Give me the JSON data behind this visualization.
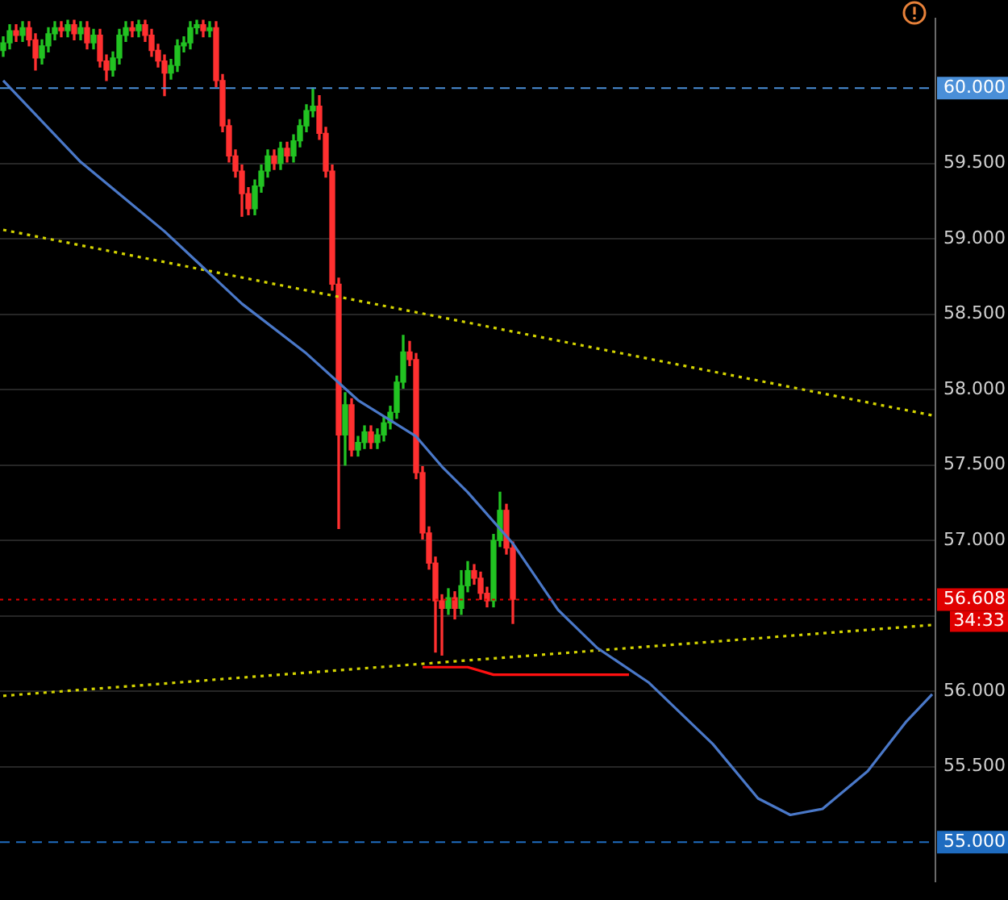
{
  "chart_data": {
    "type": "candlestick",
    "categories": [
      null,
      null,
      null,
      null,
      null,
      null,
      null,
      null,
      null,
      null,
      null,
      null,
      null,
      null,
      null,
      null,
      null,
      null,
      null,
      null,
      null,
      null,
      null,
      null,
      null,
      null,
      null,
      null,
      null,
      null,
      null,
      null,
      null,
      null,
      null,
      null,
      null,
      null,
      null,
      null,
      null,
      null,
      null,
      null,
      null,
      null,
      null,
      null,
      null,
      null,
      null,
      null,
      null,
      null,
      null,
      null,
      null,
      null,
      null,
      null,
      null,
      null,
      null,
      null,
      null,
      null,
      null,
      null,
      null,
      null,
      null,
      null,
      null,
      null,
      null,
      null,
      null,
      null,
      null,
      null,
      null,
      null,
      null,
      null,
      null,
      null,
      null,
      null,
      null,
      null,
      null,
      null,
      null,
      null,
      null,
      null,
      null,
      null,
      null,
      null,
      null,
      null,
      null,
      null,
      null,
      null,
      null,
      null,
      null,
      null,
      null,
      null,
      null,
      null,
      null,
      null,
      null,
      null,
      null,
      null,
      null,
      null,
      null,
      null,
      null,
      null,
      null,
      null,
      null,
      null,
      null,
      null,
      null,
      null,
      null,
      null,
      null,
      null,
      null,
      null,
      null,
      null,
      null,
      null,
      null
    ],
    "ohlc": [
      [
        60.25,
        60.34,
        60.21,
        60.3
      ],
      [
        60.3,
        60.42,
        60.26,
        60.38
      ],
      [
        60.38,
        60.42,
        60.31,
        60.35
      ],
      [
        60.35,
        60.44,
        60.31,
        60.4
      ],
      [
        60.4,
        60.44,
        60.28,
        60.32
      ],
      [
        60.32,
        60.36,
        60.12,
        60.2
      ],
      [
        60.2,
        60.32,
        60.16,
        60.28
      ],
      [
        60.28,
        60.4,
        60.24,
        60.36
      ],
      [
        60.36,
        60.44,
        60.32,
        60.4
      ],
      [
        60.4,
        60.44,
        60.34,
        60.38
      ],
      [
        60.38,
        60.45,
        60.34,
        60.42
      ],
      [
        60.42,
        60.45,
        60.32,
        60.36
      ],
      [
        60.36,
        60.44,
        60.32,
        60.4
      ],
      [
        60.4,
        60.44,
        60.26,
        60.3
      ],
      [
        60.3,
        60.39,
        60.26,
        60.35
      ],
      [
        60.35,
        60.39,
        60.14,
        60.18
      ],
      [
        60.18,
        60.22,
        60.05,
        60.12
      ],
      [
        60.12,
        60.24,
        60.08,
        60.2
      ],
      [
        60.2,
        60.39,
        60.16,
        60.35
      ],
      [
        60.35,
        60.44,
        60.31,
        60.4
      ],
      [
        60.4,
        60.44,
        60.34,
        60.38
      ],
      [
        60.38,
        60.45,
        60.34,
        60.42
      ],
      [
        60.42,
        60.45,
        60.31,
        60.35
      ],
      [
        60.35,
        60.39,
        60.21,
        60.25
      ],
      [
        60.25,
        60.29,
        60.14,
        60.18
      ],
      [
        60.18,
        60.22,
        59.95,
        60.1
      ],
      [
        60.1,
        60.19,
        60.06,
        60.15
      ],
      [
        60.15,
        60.32,
        60.11,
        60.28
      ],
      [
        60.28,
        60.34,
        60.24,
        60.3
      ],
      [
        60.3,
        60.44,
        60.26,
        60.4
      ],
      [
        60.4,
        60.45,
        60.36,
        60.42
      ],
      [
        60.42,
        60.45,
        60.34,
        60.38
      ],
      [
        60.38,
        60.44,
        60.34,
        60.4
      ],
      [
        60.4,
        60.44,
        60.01,
        60.05
      ],
      [
        60.05,
        60.09,
        59.71,
        59.75
      ],
      [
        59.75,
        59.79,
        59.51,
        59.55
      ],
      [
        59.55,
        59.59,
        59.41,
        59.45
      ],
      [
        59.45,
        59.49,
        59.15,
        59.3
      ],
      [
        59.3,
        59.34,
        59.16,
        59.2
      ],
      [
        59.2,
        59.39,
        59.16,
        59.35
      ],
      [
        59.35,
        59.49,
        59.31,
        59.45
      ],
      [
        59.45,
        59.59,
        59.41,
        59.55
      ],
      [
        59.55,
        59.59,
        59.46,
        59.5
      ],
      [
        59.5,
        59.64,
        59.46,
        59.6
      ],
      [
        59.6,
        59.64,
        59.51,
        59.55
      ],
      [
        59.55,
        59.69,
        59.51,
        59.65
      ],
      [
        59.65,
        59.79,
        59.61,
        59.75
      ],
      [
        59.75,
        59.89,
        59.71,
        59.85
      ],
      [
        59.85,
        60.0,
        59.81,
        59.88
      ],
      [
        59.88,
        59.95,
        59.66,
        59.7
      ],
      [
        59.7,
        59.74,
        59.41,
        59.45
      ],
      [
        59.45,
        59.49,
        58.66,
        58.7
      ],
      [
        58.7,
        58.74,
        57.08,
        57.7
      ],
      [
        57.7,
        57.98,
        57.5,
        57.9
      ],
      [
        57.9,
        57.94,
        57.56,
        57.6
      ],
      [
        57.6,
        57.69,
        57.56,
        57.65
      ],
      [
        57.65,
        57.76,
        57.61,
        57.72
      ],
      [
        57.72,
        57.76,
        57.61,
        57.65
      ],
      [
        57.65,
        57.74,
        57.61,
        57.7
      ],
      [
        57.7,
        57.82,
        57.66,
        57.78
      ],
      [
        57.78,
        57.89,
        57.74,
        57.85
      ],
      [
        57.85,
        58.09,
        57.81,
        58.05
      ],
      [
        58.05,
        58.36,
        58.01,
        58.25
      ],
      [
        58.25,
        58.32,
        58.16,
        58.2
      ],
      [
        58.2,
        58.24,
        57.41,
        57.45
      ],
      [
        57.45,
        57.49,
        57.01,
        57.05
      ],
      [
        57.05,
        57.09,
        56.81,
        56.85
      ],
      [
        56.85,
        56.89,
        56.26,
        56.6
      ],
      [
        56.6,
        56.64,
        56.24,
        56.55
      ],
      [
        56.55,
        56.68,
        56.51,
        56.62
      ],
      [
        56.62,
        56.66,
        56.48,
        56.55
      ],
      [
        56.55,
        56.8,
        56.51,
        56.7
      ],
      [
        56.7,
        56.86,
        56.66,
        56.8
      ],
      [
        56.8,
        56.84,
        56.71,
        56.75
      ],
      [
        56.75,
        56.79,
        56.61,
        56.65
      ],
      [
        56.65,
        56.69,
        56.56,
        56.6
      ],
      [
        56.6,
        57.04,
        56.56,
        57.0
      ],
      [
        57.0,
        57.32,
        56.96,
        57.2
      ],
      [
        57.2,
        57.24,
        56.91,
        56.95
      ],
      [
        56.95,
        56.99,
        56.45,
        56.61
      ],
      null,
      null,
      null,
      null,
      null,
      null,
      null,
      null,
      null,
      null,
      null,
      null,
      null,
      null,
      null,
      null,
      null,
      null,
      null,
      null,
      null,
      null,
      null,
      null,
      null,
      null,
      null,
      null,
      null,
      null,
      null,
      null,
      null,
      null,
      null,
      null,
      null,
      null,
      null,
      null,
      null,
      null,
      null,
      null,
      null,
      null,
      null,
      null,
      null,
      null,
      null,
      null,
      null,
      null,
      null,
      null,
      null,
      null,
      null,
      null,
      null,
      null,
      null,
      null,
      null
    ],
    "colors": [
      "#22c322",
      "#22c322",
      "#ff3030",
      "#22c322",
      "#ff3030",
      "#ff3030",
      "#22c322",
      "#22c322",
      "#22c322",
      "#ff3030",
      "#22c322",
      "#ff3030",
      "#22c322",
      "#ff3030",
      "#22c322",
      "#ff3030",
      "#ff3030",
      "#22c322",
      "#22c322",
      "#22c322",
      "#ff3030",
      "#22c322",
      "#ff3030",
      "#ff3030",
      "#ff3030",
      "#ff3030",
      "#22c322",
      "#22c322",
      "#22c322",
      "#22c322",
      "#22c322",
      "#ff3030",
      "#22c322",
      "#ff3030",
      "#ff3030",
      "#ff3030",
      "#ff3030",
      "#ff3030",
      "#ff3030",
      "#22c322",
      "#22c322",
      "#22c322",
      "#ff3030",
      "#22c322",
      "#ff3030",
      "#22c322",
      "#22c322",
      "#22c322",
      "#22c322",
      "#ff3030",
      "#ff3030",
      "#ff3030",
      "#ff3030",
      "#22c322",
      "#ff3030",
      "#22c322",
      "#22c322",
      "#ff3030",
      "#22c322",
      "#22c322",
      "#22c322",
      "#22c322",
      "#22c322",
      "#ff3030",
      "#ff3030",
      "#ff3030",
      "#ff3030",
      "#ff3030",
      "#ff3030",
      "#22c322",
      "#ff3030",
      "#22c322",
      "#22c322",
      "#ff3030",
      "#ff3030",
      "#ff3030",
      "#22c322",
      "#22c322",
      "#ff3030",
      "#ff3030",
      null,
      null,
      null,
      null,
      null,
      null,
      null,
      null,
      null,
      null,
      null,
      null,
      null,
      null,
      null,
      null,
      null,
      null,
      null,
      null,
      null,
      null,
      null,
      null,
      null,
      null,
      null,
      null,
      null,
      null,
      null,
      null,
      null,
      null,
      null,
      null,
      null,
      null,
      null,
      null,
      null,
      null,
      null,
      null,
      null,
      null,
      null,
      null,
      null,
      null,
      null,
      null,
      null,
      null,
      null,
      null,
      null,
      null,
      null,
      null,
      null,
      null,
      null,
      null,
      null
    ],
    "series": [
      {
        "type": "line",
        "color": "#4a78c8",
        "values": [
          60.05,
          null,
          null,
          null,
          null,
          null,
          null,
          null,
          null,
          null,
          null,
          null,
          59.51,
          null,
          null,
          null,
          null,
          null,
          null,
          null,
          null,
          null,
          null,
          null,
          null,
          59.05,
          null,
          null,
          null,
          null,
          58.85,
          null,
          null,
          null,
          null,
          null,
          null,
          58.57,
          null,
          null,
          null,
          null,
          null,
          null,
          null,
          null,
          null,
          58.24,
          null,
          null,
          null,
          null,
          null,
          null,
          null,
          57.93,
          null,
          null,
          null,
          null,
          null,
          null,
          null,
          null,
          57.69,
          null,
          null,
          null,
          57.49,
          null,
          null,
          null,
          57.32,
          null,
          null,
          null,
          null,
          null,
          null,
          56.98,
          null,
          null,
          null,
          null,
          null,
          null,
          56.54,
          null,
          null,
          null,
          null,
          null,
          56.29,
          null,
          null,
          null,
          null,
          null,
          null,
          null,
          56.06,
          null,
          null,
          null,
          null,
          null,
          null,
          null,
          null,
          null,
          55.65,
          null,
          null,
          null,
          null,
          null,
          null,
          55.29,
          null,
          null,
          null,
          null,
          55.18,
          null,
          null,
          null,
          null,
          55.22,
          null,
          null,
          null,
          null,
          null,
          null,
          55.47,
          null,
          null,
          null,
          null,
          null,
          55.8,
          null,
          null,
          null,
          55.98
        ]
      },
      {
        "type": "line",
        "color": "#d4d400",
        "line_style": "dotted",
        "values": [
          59.06,
          null,
          null,
          null,
          null,
          null,
          null,
          null,
          null,
          null,
          null,
          null,
          null,
          null,
          null,
          null,
          null,
          null,
          null,
          null,
          null,
          null,
          null,
          null,
          null,
          null,
          null,
          null,
          null,
          null,
          null,
          null,
          null,
          null,
          null,
          null,
          null,
          null,
          null,
          null,
          null,
          null,
          null,
          null,
          null,
          null,
          null,
          null,
          null,
          null,
          null,
          null,
          null,
          null,
          null,
          null,
          null,
          null,
          null,
          null,
          null,
          null,
          null,
          null,
          null,
          null,
          null,
          null,
          null,
          null,
          null,
          null,
          null,
          null,
          null,
          null,
          null,
          null,
          null,
          null,
          null,
          null,
          null,
          null,
          null,
          null,
          null,
          null,
          null,
          null,
          null,
          null,
          null,
          null,
          null,
          null,
          null,
          null,
          null,
          null,
          null,
          null,
          null,
          null,
          null,
          null,
          null,
          null,
          null,
          null,
          null,
          null,
          null,
          null,
          null,
          null,
          null,
          null,
          null,
          null,
          null,
          null,
          null,
          null,
          null,
          null,
          null,
          null,
          null,
          null,
          null,
          null,
          null,
          null,
          null,
          null,
          null,
          null,
          null,
          null,
          null,
          null,
          null,
          null,
          57.83
        ]
      },
      {
        "type": "line",
        "color": "#d4d400",
        "line_style": "dotted",
        "values": [
          55.97,
          null,
          null,
          null,
          null,
          null,
          null,
          null,
          null,
          null,
          null,
          null,
          null,
          null,
          null,
          null,
          null,
          null,
          null,
          null,
          null,
          null,
          null,
          null,
          null,
          null,
          null,
          null,
          null,
          null,
          null,
          null,
          null,
          null,
          null,
          null,
          null,
          null,
          null,
          null,
          null,
          null,
          null,
          null,
          null,
          null,
          null,
          null,
          null,
          null,
          null,
          null,
          null,
          null,
          null,
          null,
          null,
          null,
          null,
          null,
          null,
          null,
          null,
          null,
          null,
          null,
          null,
          null,
          null,
          null,
          null,
          null,
          null,
          null,
          null,
          null,
          null,
          null,
          null,
          null,
          null,
          null,
          null,
          null,
          null,
          null,
          null,
          null,
          null,
          null,
          null,
          null,
          null,
          null,
          null,
          null,
          null,
          null,
          null,
          null,
          null,
          null,
          null,
          null,
          null,
          null,
          null,
          null,
          null,
          null,
          null,
          null,
          null,
          null,
          null,
          null,
          null,
          null,
          null,
          null,
          null,
          null,
          null,
          null,
          null,
          null,
          null,
          null,
          null,
          null,
          null,
          null,
          null,
          null,
          null,
          null,
          null,
          null,
          null,
          null,
          null,
          null,
          null,
          null,
          56.44
        ]
      },
      {
        "type": "line",
        "color": "#ff1010",
        "values": [
          null,
          null,
          null,
          null,
          null,
          null,
          null,
          null,
          null,
          null,
          null,
          null,
          null,
          null,
          null,
          null,
          null,
          null,
          null,
          null,
          null,
          null,
          null,
          null,
          null,
          null,
          null,
          null,
          null,
          null,
          null,
          null,
          null,
          null,
          null,
          null,
          null,
          null,
          null,
          null,
          null,
          null,
          null,
          null,
          null,
          null,
          null,
          null,
          null,
          null,
          null,
          null,
          null,
          null,
          null,
          null,
          null,
          null,
          null,
          null,
          null,
          null,
          null,
          null,
          null,
          56.16,
          null,
          null,
          null,
          null,
          null,
          null,
          56.16,
          null,
          null,
          null,
          56.11,
          null,
          null,
          null,
          null,
          null,
          null,
          null,
          null,
          null,
          null,
          null,
          null,
          null,
          null,
          null,
          null,
          null,
          null,
          null,
          null,
          56.11,
          null,
          null,
          null,
          null,
          null,
          null,
          null,
          null,
          null,
          null,
          null,
          null,
          null,
          null,
          null,
          null,
          null,
          null,
          null,
          null,
          null,
          null,
          null,
          null,
          null,
          null,
          null,
          null,
          null,
          null,
          null,
          null,
          null,
          null,
          null,
          null,
          null,
          null,
          null,
          null,
          null,
          null,
          null,
          null,
          null,
          null,
          null
        ]
      }
    ],
    "ylim": [
      54.74,
      60.46
    ],
    "yticks": [
      {
        "value": 55.5,
        "label": "55.500"
      },
      {
        "value": 56,
        "label": "56.000"
      },
      {
        "value": 56.5,
        "label": null
      },
      {
        "value": 57,
        "label": "57.000"
      },
      {
        "value": 57.5,
        "label": "57.500"
      },
      {
        "value": 58,
        "label": "58.000"
      },
      {
        "value": 58.5,
        "label": "58.500"
      },
      {
        "value": 59,
        "label": "59.000"
      },
      {
        "value": 59.5,
        "label": "59.500"
      }
    ],
    "ref_lines": [
      {
        "axis": "y",
        "value": 60,
        "label": "60.000",
        "color": "#4a8fd8",
        "line_style": "dashed"
      },
      {
        "axis": "y",
        "value": 55,
        "label": "55.000",
        "color": "#1f6cc0",
        "line_style": "dashed"
      },
      {
        "axis": "y",
        "value": 56.608,
        "label": "56.608",
        "color": "#e00000",
        "line_style": "dotted"
      }
    ],
    "annotations": [
      "34:33"
    ],
    "grid": "y",
    "tick_labels": "y",
    "legend": false
  }
}
